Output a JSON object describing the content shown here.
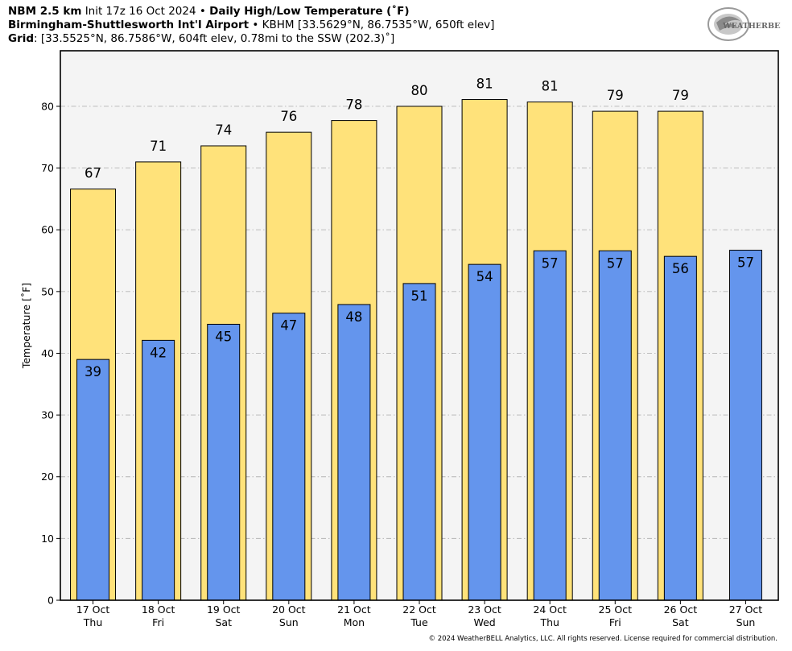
{
  "header": {
    "line1_bold1": "NBM 2.5 km",
    "line1_text1": "Init 17z 16 Oct 2024",
    "line1_sep": " • ",
    "line1_bold2": "Daily High/Low Temperature (˚F)",
    "line2_bold": "Birmingham-Shuttlesworth Int'l Airport",
    "line2_sep": " • ",
    "line2_text": "KBHM [33.5629°N, 86.7535°W, 650ft elev]",
    "line3_bold": "Grid",
    "line3_text": ": [33.5525°N, 86.7586°W, 604ft elev, 0.78mi to the SSW (202.3)˚]"
  },
  "logo": {
    "text": "WEATHERBELL"
  },
  "copyright": "© 2024 WeatherBELL Analytics, LLC. All rights reserved. License required for commercial distribution.",
  "colors": {
    "high": "#ffe27a",
    "low": "#6495ed",
    "plot_bg": "#f4f4f4",
    "grid": "#b4b4b4"
  },
  "chart_data": {
    "type": "bar",
    "ylabel": "Temperature [˚F]",
    "ylim": [
      0,
      89
    ],
    "yticks": [
      0,
      10,
      20,
      30,
      40,
      50,
      60,
      70,
      80
    ],
    "grid": true,
    "categories": [
      {
        "date": "17 Oct",
        "day": "Thu"
      },
      {
        "date": "18 Oct",
        "day": "Fri"
      },
      {
        "date": "19 Oct",
        "day": "Sat"
      },
      {
        "date": "20 Oct",
        "day": "Sun"
      },
      {
        "date": "21 Oct",
        "day": "Mon"
      },
      {
        "date": "22 Oct",
        "day": "Tue"
      },
      {
        "date": "23 Oct",
        "day": "Wed"
      },
      {
        "date": "24 Oct",
        "day": "Thu"
      },
      {
        "date": "25 Oct",
        "day": "Fri"
      },
      {
        "date": "26 Oct",
        "day": "Sat"
      },
      {
        "date": "27 Oct",
        "day": "Sun"
      }
    ],
    "series": [
      {
        "key": "high",
        "values": [
          66.6,
          71.0,
          73.6,
          75.8,
          77.7,
          80.0,
          81.1,
          80.7,
          79.2,
          79.2,
          null
        ],
        "labels": [
          "67",
          "71",
          "74",
          "76",
          "78",
          "80",
          "81",
          "81",
          "79",
          "79",
          null
        ]
      },
      {
        "key": "low",
        "values": [
          39.0,
          42.1,
          44.7,
          46.5,
          47.9,
          51.3,
          54.4,
          56.6,
          56.6,
          55.7,
          56.7
        ],
        "labels": [
          "39",
          "42",
          "45",
          "47",
          "48",
          "51",
          "54",
          "57",
          "57",
          "56",
          "57"
        ]
      }
    ]
  }
}
